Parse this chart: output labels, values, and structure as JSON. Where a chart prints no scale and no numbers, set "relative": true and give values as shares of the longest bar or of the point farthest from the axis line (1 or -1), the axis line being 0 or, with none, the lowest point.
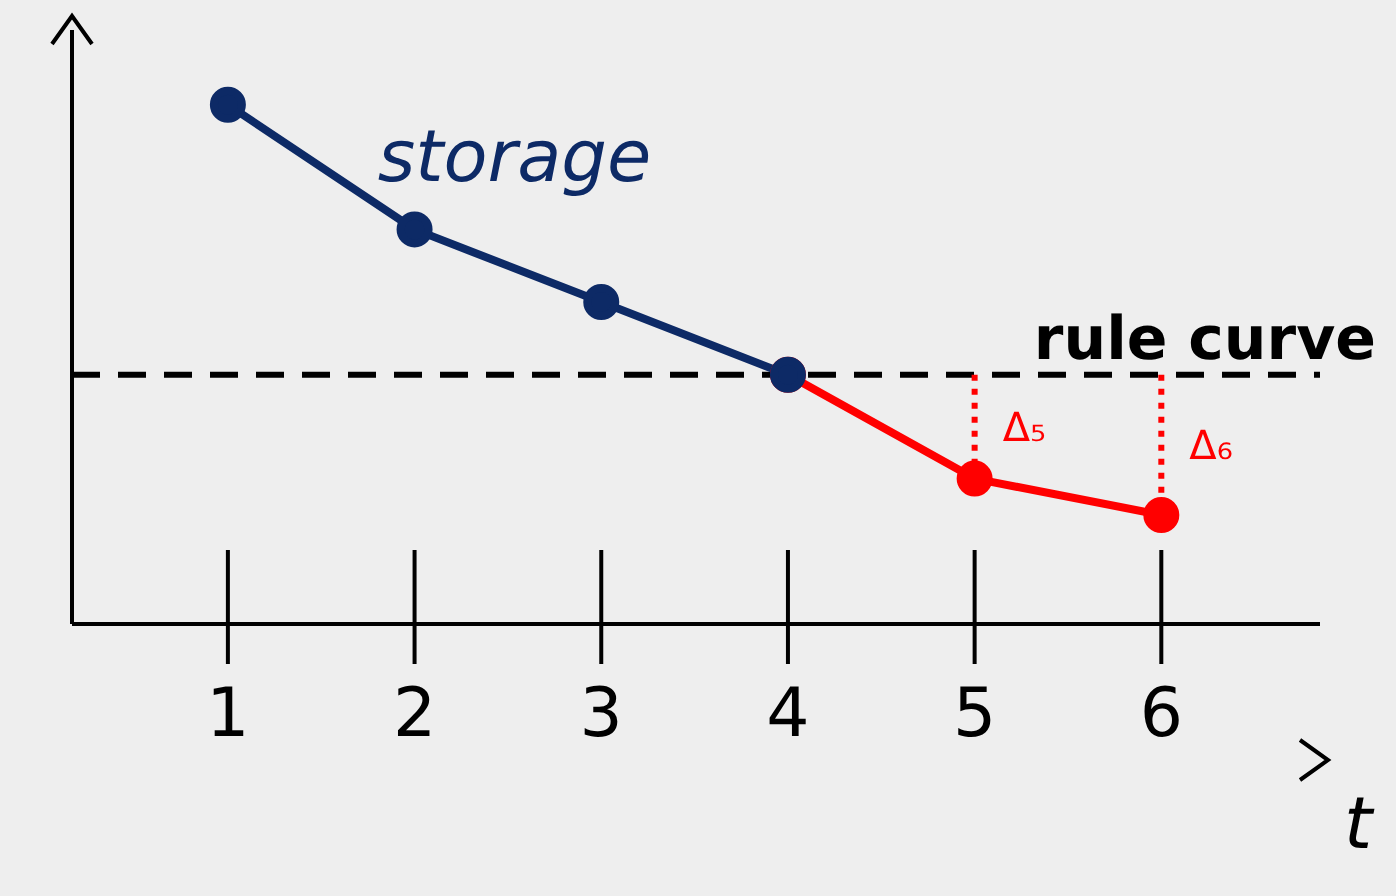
{
  "chart_data": {
    "type": "line",
    "relative": true,
    "xlabel": "t",
    "categories": [
      "1",
      "2",
      "3",
      "4",
      "5",
      "6"
    ],
    "series": [
      {
        "color": "#ff0000",
        "values": [
          null,
          null,
          null,
          0.48,
          0.28,
          0.21
        ]
      },
      {
        "name": "storage",
        "color": "#0d2a66",
        "values": [
          1,
          0.76,
          0.62,
          0.48,
          null,
          null
        ]
      }
    ],
    "ref_lines": [
      {
        "axis": "y",
        "value": 0.48,
        "label": "rule curve",
        "color": "#000000",
        "line_style": "dashed"
      }
    ],
    "annotations": [
      "Δ₅",
      "Δ₆"
    ],
    "marker": "circle",
    "legend": false,
    "grid": false
  }
}
